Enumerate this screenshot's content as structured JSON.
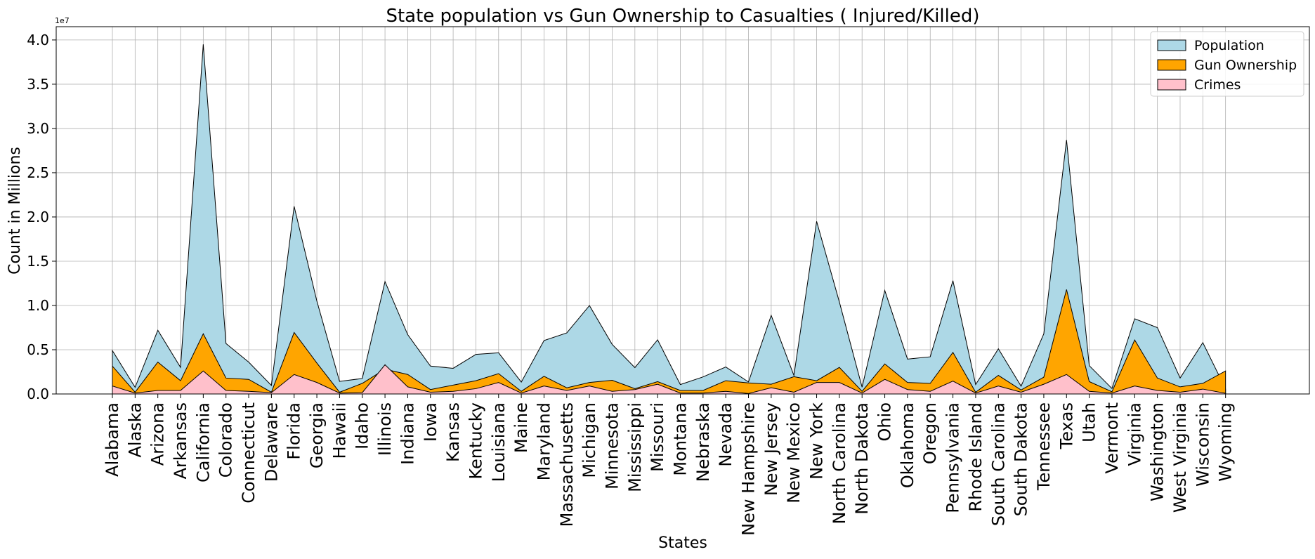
{
  "chart_data": {
    "type": "area",
    "title": "State population vs Gun Ownership to Casualties ( Injured/Killed)",
    "xlabel": "States",
    "ylabel": "Count in Millions",
    "y_offset_label": "1e7",
    "ylim": [
      0,
      41500000
    ],
    "yticks": [
      0,
      5000000,
      10000000,
      15000000,
      20000000,
      25000000,
      30000000,
      35000000,
      40000000
    ],
    "ytick_labels": [
      "0.0",
      "0.5",
      "1.0",
      "1.5",
      "2.0",
      "2.5",
      "3.0",
      "3.5",
      "4.0"
    ],
    "grid": true,
    "legend_position": "top-right",
    "categories": [
      "Alabama",
      "Alaska",
      "Arizona",
      "Arkansas",
      "California",
      "Colorado",
      "Connecticut",
      "Delaware",
      "Florida",
      "Georgia",
      "Hawaii",
      "Idaho",
      "Illinois",
      "Indiana",
      "Iowa",
      "Kansas",
      "Kentucky",
      "Louisiana",
      "Maine",
      "Maryland",
      "Massachusetts",
      "Michigan",
      "Minnesota",
      "Mississippi",
      "Missouri",
      "Montana",
      "Nebraska",
      "Nevada",
      "New Hampshire",
      "New Jersey",
      "New Mexico",
      "New York",
      "North Carolina",
      "North Dakota",
      "Ohio",
      "Oklahoma",
      "Oregon",
      "Pennsylvania",
      "Rhode Island",
      "South Carolina",
      "South Dakota",
      "Tennessee",
      "Texas",
      "Utah",
      "Vermont",
      "Virginia",
      "Washington",
      "West Virginia",
      "Wisconsin",
      "Wyoming"
    ],
    "series": [
      {
        "name": "Population",
        "color": "#add8e6",
        "values": [
          4900000,
          750000,
          7200000,
          3000000,
          39500000,
          5700000,
          3600000,
          960000,
          21200000,
          10500000,
          1420000,
          1750000,
          12700000,
          6700000,
          3150000,
          2900000,
          4470000,
          4650000,
          1340000,
          6040000,
          6900000,
          9990000,
          5600000,
          2980000,
          6120000,
          1060000,
          1930000,
          3050000,
          1360000,
          8880000,
          2090000,
          19500000,
          10400000,
          760000,
          11700000,
          3940000,
          4200000,
          12800000,
          1060000,
          5100000,
          880000,
          6800000,
          28700000,
          3200000,
          620000,
          8500000,
          7500000,
          1800000,
          5800000,
          580000
        ]
      },
      {
        "name": "Gun Ownership",
        "color": "#ffa500",
        "values": [
          3150000,
          200000,
          3600000,
          1500000,
          6800000,
          1800000,
          1650000,
          200000,
          6950000,
          3500000,
          200000,
          1200000,
          2800000,
          2200000,
          500000,
          1000000,
          1500000,
          2300000,
          300000,
          2000000,
          700000,
          1300000,
          1550000,
          600000,
          1400000,
          400000,
          400000,
          1500000,
          1250000,
          1100000,
          1950000,
          1500000,
          3000000,
          300000,
          3400000,
          1300000,
          1200000,
          4700000,
          200000,
          2100000,
          450000,
          1900000,
          11800000,
          1400000,
          250000,
          6100000,
          1800000,
          800000,
          1200000,
          2600000
        ]
      },
      {
        "name": "Crimes",
        "color": "#ffc0cb",
        "values": [
          900000,
          100000,
          400000,
          400000,
          2600000,
          400000,
          300000,
          150000,
          2200000,
          1300000,
          100000,
          150000,
          3300000,
          800000,
          200000,
          300000,
          600000,
          1300000,
          100000,
          900000,
          400000,
          900000,
          300000,
          500000,
          1100000,
          100000,
          100000,
          300000,
          50000,
          700000,
          200000,
          1300000,
          1300000,
          100000,
          1650000,
          500000,
          300000,
          1450000,
          100000,
          900000,
          200000,
          1100000,
          2200000,
          300000,
          100000,
          900000,
          400000,
          200000,
          550000,
          80000
        ]
      }
    ]
  }
}
